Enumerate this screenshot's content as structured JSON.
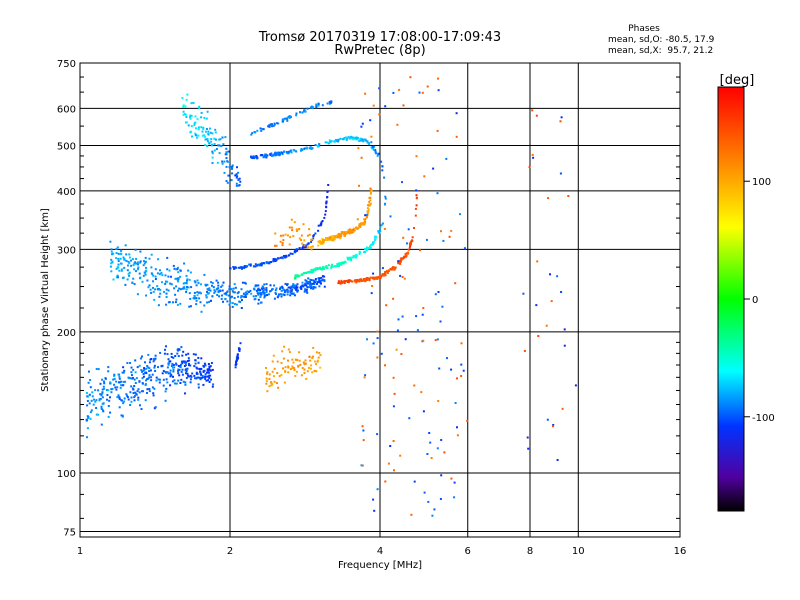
{
  "chart_data": {
    "type": "scatter",
    "title": "Tromsø 20170319 17:08:00-17:09:43",
    "subtitle": "RwPretec (8p)",
    "xlabel": "Frequency [MHz]",
    "ylabel": "Stationary phase Virtual Height [km]",
    "x_scale": "log2",
    "y_scale": "log",
    "xlim": [
      1,
      16
    ],
    "ylim": [
      73,
      750
    ],
    "x_ticks": [
      "1",
      "2",
      "4",
      "6",
      "8",
      "10",
      "16"
    ],
    "y_ticks": [
      "75",
      "100",
      "200",
      "300",
      "400",
      "500",
      "600",
      "750"
    ],
    "grid": true,
    "stats": {
      "heading": "Phases",
      "line_o": "mean, sd,O: -80.5, 17.9",
      "line_x": "mean, sd,X:  95.7, 21.2"
    },
    "colorbar": {
      "unit": "[deg]",
      "range": [
        -180,
        180
      ],
      "ticks": [
        "100",
        "0",
        "-100"
      ]
    },
    "traces": [
      {
        "kind": "band",
        "x": [
          1.03,
          1.3,
          1.6,
          1.85
        ],
        "y": [
          140,
          158,
          168,
          163
        ],
        "spread": [
          22,
          22,
          18,
          12
        ],
        "phase": [
          -85,
          -95,
          -100,
          -110
        ],
        "n": 420
      },
      {
        "kind": "band",
        "x": [
          1.15,
          1.4,
          1.7,
          2.0,
          2.4,
          2.8,
          3.1
        ],
        "y": [
          285,
          262,
          248,
          240,
          242,
          250,
          258
        ],
        "spread": [
          30,
          32,
          25,
          14,
          10,
          8,
          8
        ],
        "phase": [
          -80,
          -85,
          -88,
          -92,
          -95,
          -98,
          -100
        ],
        "n": 520
      },
      {
        "kind": "band",
        "x": [
          1.6,
          1.8,
          2.0,
          2.1
        ],
        "y": [
          600,
          530,
          450,
          420
        ],
        "spread": [
          55,
          60,
          40,
          25
        ],
        "phase": [
          -60,
          -75,
          -90,
          -100
        ],
        "n": 130
      },
      {
        "kind": "line",
        "x": [
          2.0,
          2.3,
          2.6,
          2.9,
          3.1,
          3.15
        ],
        "y": [
          273,
          278,
          290,
          310,
          350,
          410
        ],
        "spread": [
          3,
          3,
          3,
          4,
          6,
          10
        ],
        "phase": [
          -100,
          -100,
          -105,
          -110,
          -115,
          -125
        ],
        "n": 130
      },
      {
        "kind": "line",
        "x": [
          2.2,
          2.5,
          2.8,
          3.1,
          3.5,
          3.8,
          4.0,
          4.1
        ],
        "y": [
          470,
          480,
          490,
          505,
          520,
          510,
          470,
          420
        ],
        "spread": [
          6,
          6,
          6,
          6,
          6,
          8,
          10,
          14
        ],
        "phase": [
          -100,
          -95,
          -85,
          -75,
          -70,
          -80,
          -95,
          -100
        ],
        "n": 180
      },
      {
        "kind": "line",
        "x": [
          2.2,
          2.5,
          2.8,
          3.0,
          3.2
        ],
        "y": [
          530,
          560,
          590,
          610,
          620
        ],
        "spread": [
          8,
          8,
          8,
          8,
          8
        ],
        "phase": [
          -95,
          -90,
          -85,
          -85,
          -95
        ],
        "n": 70
      },
      {
        "kind": "line",
        "x": [
          2.7,
          3.0,
          3.3,
          3.6,
          3.85,
          4.05,
          4.15
        ],
        "y": [
          262,
          272,
          278,
          292,
          305,
          340,
          420
        ],
        "spread": [
          3,
          3,
          3,
          4,
          5,
          8,
          18
        ],
        "phase": [
          -35,
          -40,
          -45,
          -55,
          -65,
          -80,
          -90
        ],
        "n": 150
      },
      {
        "kind": "line",
        "x": [
          3.0,
          3.3,
          3.55,
          3.75,
          3.85
        ],
        "y": [
          310,
          320,
          330,
          345,
          400
        ],
        "spread": [
          6,
          6,
          6,
          8,
          20
        ],
        "phase": [
          100,
          105,
          110,
          110,
          105
        ],
        "n": 170
      },
      {
        "kind": "line",
        "x": [
          3.3,
          3.7,
          4.0,
          4.3,
          4.55,
          4.7,
          4.75
        ],
        "y": [
          255,
          258,
          262,
          275,
          295,
          330,
          400
        ],
        "spread": [
          3,
          3,
          3,
          4,
          5,
          10,
          25
        ],
        "phase": [
          150,
          145,
          140,
          140,
          145,
          150,
          155
        ],
        "n": 170
      },
      {
        "kind": "band",
        "x": [
          2.35,
          2.6,
          2.85,
          3.1
        ],
        "y": [
          160,
          170,
          168,
          175
        ],
        "spread": [
          15,
          14,
          13,
          10
        ],
        "phase": [
          110,
          105,
          110,
          100
        ],
        "n": 90
      },
      {
        "kind": "band",
        "x": [
          2.45,
          2.7,
          2.95
        ],
        "y": [
          320,
          330,
          305
        ],
        "spread": [
          20,
          25,
          18
        ],
        "phase": [
          120,
          110,
          105
        ],
        "n": 40
      },
      {
        "kind": "band",
        "x": [
          2.05,
          2.1
        ],
        "y": [
          168,
          188
        ],
        "spread": [
          4,
          4
        ],
        "phase": [
          -105,
          -110
        ],
        "n": 25
      },
      {
        "kind": "sparse",
        "x": [
          3.6,
          6.0
        ],
        "y": [
          80,
          700
        ],
        "phase": [
          -100,
          130
        ],
        "n": 140
      },
      {
        "kind": "sparse",
        "x": [
          7.7,
          10.0
        ],
        "y": [
          100,
          620
        ],
        "phase": [
          -110,
          140
        ],
        "n": 30
      }
    ]
  }
}
